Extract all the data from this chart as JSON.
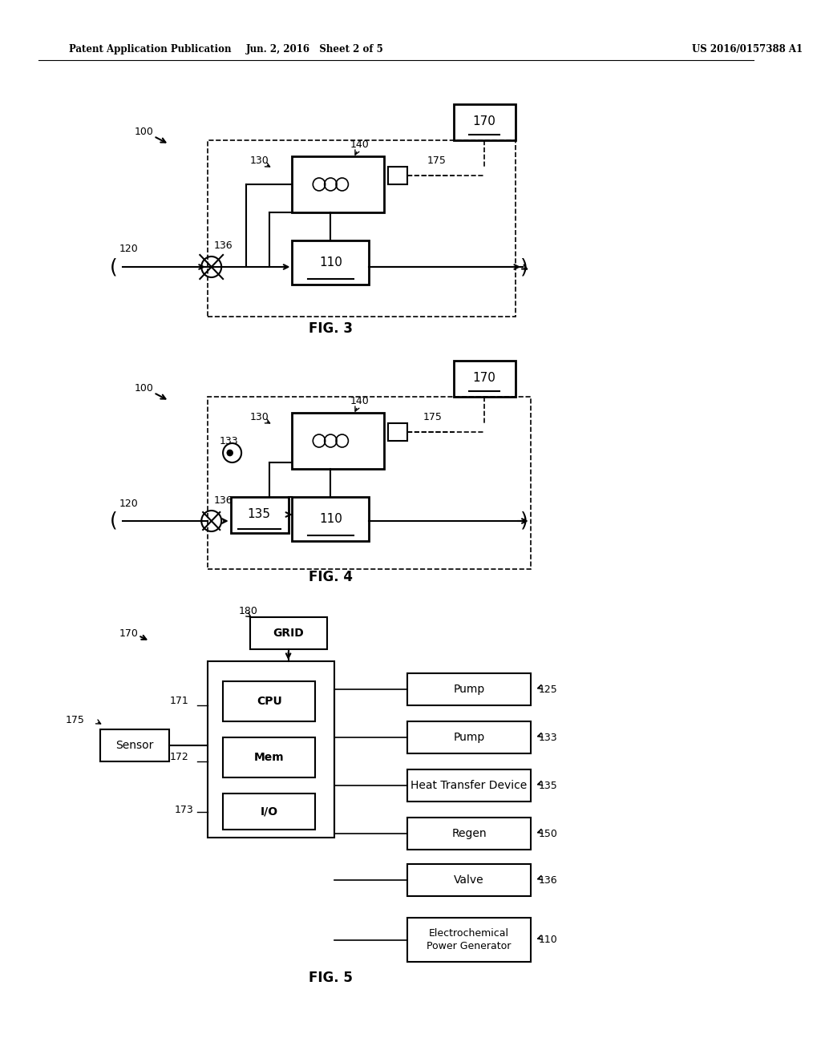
{
  "header_left": "Patent Application Publication",
  "header_mid": "Jun. 2, 2016   Sheet 2 of 5",
  "header_right": "US 2016/0157388 A1",
  "fig3_label": "FIG. 3",
  "fig4_label": "FIG. 4",
  "fig5_label": "FIG. 5",
  "background": "#ffffff",
  "line_color": "#000000"
}
